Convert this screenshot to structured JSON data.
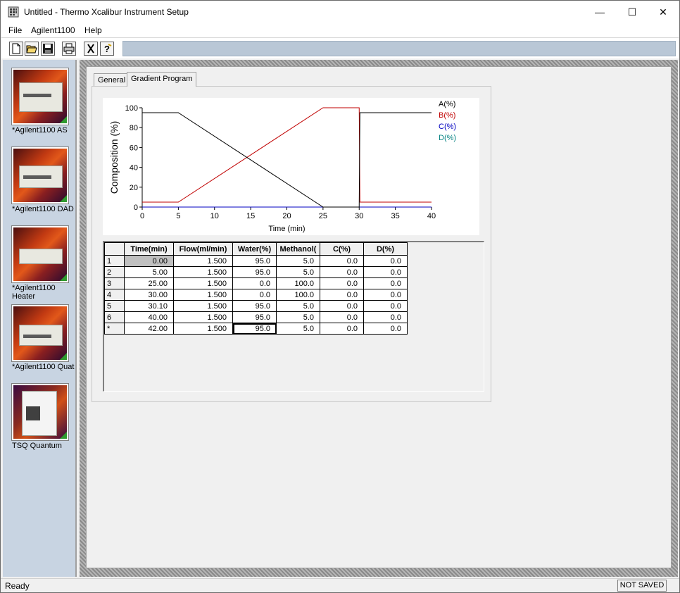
{
  "window": {
    "title": "Untitled - Thermo Xcalibur Instrument Setup",
    "minimize": "—",
    "maximize": "☐",
    "close": "✕"
  },
  "menu": [
    "File",
    "Agilent1100",
    "Help"
  ],
  "toolbar": {
    "buttons": [
      "new-document-icon",
      "open-folder-icon",
      "save-icon",
      "print-icon",
      "cut-icon",
      "help-icon"
    ]
  },
  "sidebar": {
    "devices": [
      {
        "label": "*Agilent1100 AS"
      },
      {
        "label": "*Agilent1100 DAD"
      },
      {
        "label": "*Agilent1100 Heater"
      },
      {
        "label": "*Agilent1100 Quat"
      },
      {
        "label": "TSQ Quantum"
      }
    ]
  },
  "tabs": [
    {
      "label": "General",
      "active": false
    },
    {
      "label": "Gradient Program",
      "active": true
    }
  ],
  "chart_data": {
    "type": "line",
    "xlabel": "Time (min)",
    "ylabel": "Composition (%)",
    "xlim": [
      0,
      40
    ],
    "ylim": [
      0,
      100
    ],
    "xticks": [
      0,
      5,
      10,
      15,
      20,
      25,
      30,
      35,
      40
    ],
    "yticks": [
      0,
      20,
      40,
      60,
      80,
      100
    ],
    "legend_position": "right",
    "series": [
      {
        "name": "A(%)",
        "color": "#000000",
        "x": [
          0,
          5,
          25,
          30,
          30.1,
          40
        ],
        "y": [
          95,
          95,
          0,
          0,
          95,
          95
        ]
      },
      {
        "name": "B(%)",
        "color": "#c00000",
        "x": [
          0,
          5,
          25,
          30,
          30.1,
          40
        ],
        "y": [
          5,
          5,
          100,
          100,
          5,
          5
        ]
      },
      {
        "name": "C(%)",
        "color": "#0000c0",
        "x": [
          0,
          40
        ],
        "y": [
          0,
          0
        ]
      },
      {
        "name": "D(%)",
        "color": "#008080",
        "x": [
          0,
          40
        ],
        "y": [
          0,
          0
        ]
      }
    ]
  },
  "table": {
    "headers": [
      "",
      "Time(min)",
      "Flow(ml/min)",
      "Water(%)",
      "Methanol(",
      "C(%)",
      "D(%)"
    ],
    "rows": [
      [
        "1",
        "0.00",
        "1.500",
        "95.0",
        "5.0",
        "0.0",
        "0.0"
      ],
      [
        "2",
        "5.00",
        "1.500",
        "95.0",
        "5.0",
        "0.0",
        "0.0"
      ],
      [
        "3",
        "25.00",
        "1.500",
        "0.0",
        "100.0",
        "0.0",
        "0.0"
      ],
      [
        "4",
        "30.00",
        "1.500",
        "0.0",
        "100.0",
        "0.0",
        "0.0"
      ],
      [
        "5",
        "30.10",
        "1.500",
        "95.0",
        "5.0",
        "0.0",
        "0.0"
      ],
      [
        "6",
        "40.00",
        "1.500",
        "95.0",
        "5.0",
        "0.0",
        "0.0"
      ],
      [
        "*",
        "42.00",
        "1.500",
        "95.0",
        "5.0",
        "0.0",
        "0.0"
      ]
    ]
  },
  "status": {
    "left": "Ready",
    "right": "NOT SAVED"
  }
}
